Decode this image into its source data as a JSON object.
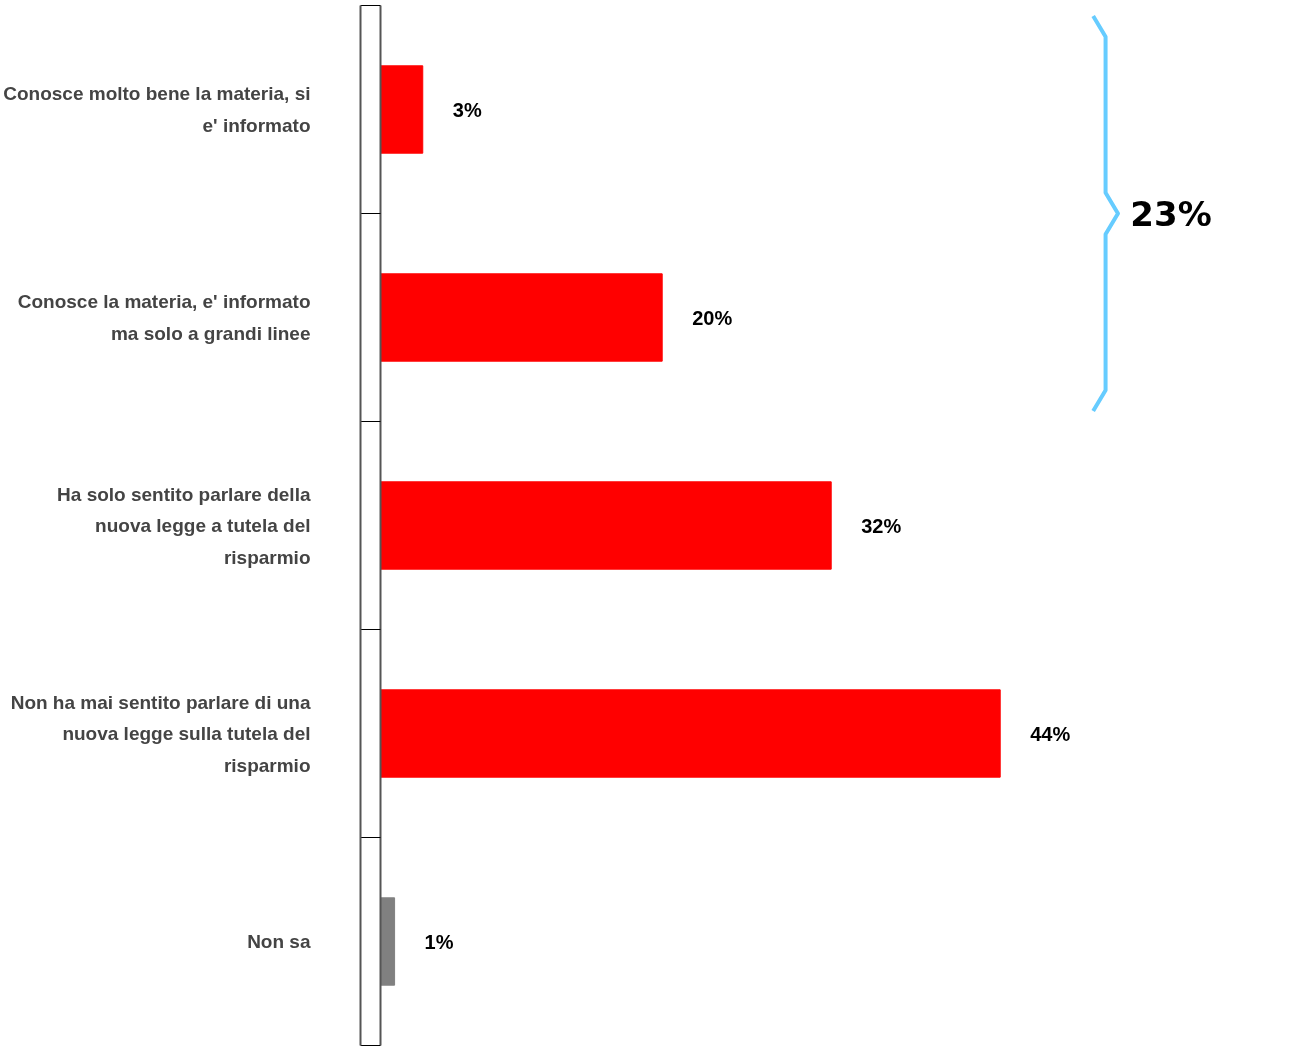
{
  "chart_data": {
    "type": "bar",
    "orientation": "horizontal",
    "categories": [
      "Conosce molto bene la materia, si e' informato",
      "Conosce la materia, e' informato ma solo a grandi linee",
      "Ha solo sentito parlare della nuova legge a tutela del risparmio",
      "Non ha mai sentito parlare di una nuova legge sulla tutela del risparmio",
      "Non sa"
    ],
    "values": [
      3,
      20,
      32,
      44,
      1
    ],
    "colors": [
      "#ff0000",
      "#ff0000",
      "#ff0000",
      "#ff0000",
      "#808080"
    ],
    "value_labels": [
      "3%",
      "20%",
      "32%",
      "44%",
      "1%"
    ],
    "annotations": [
      "23%"
    ],
    "grid": false
  }
}
